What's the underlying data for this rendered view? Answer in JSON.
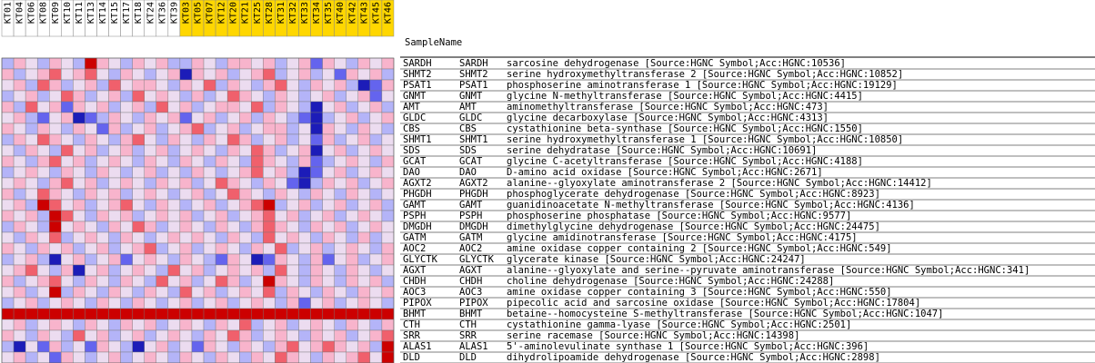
{
  "header": {
    "title": "SampleName"
  },
  "sample_groups": [
    {
      "color": "#ffffff",
      "samples": [
        "KT01",
        "KT04",
        "KT06",
        "KT08",
        "KT09",
        "KT10",
        "KT11",
        "KT13",
        "KT14",
        "KT15",
        "KT17",
        "KT18",
        "KT24",
        "KT36",
        "KT39"
      ]
    },
    {
      "color": "#ffd700",
      "samples": [
        "KT03",
        "KT05",
        "KT07",
        "KT12",
        "KT20",
        "KT21",
        "KT25",
        "KT28",
        "KT31",
        "KT32",
        "KT33",
        "KT34",
        "KT35",
        "KT40",
        "KT42",
        "KT43",
        "KT45",
        "KT46"
      ]
    }
  ],
  "level_colors": {
    "-3": "#1c1cb8",
    "-2": "#6464ee",
    "-1": "#b4b4f8",
    "0": "#ecdcf0",
    "1": "#f8b4cc",
    "2": "#f0606c",
    "3": "#cc0000"
  },
  "rows": [
    {
      "probe": "SARDH",
      "symbol": "SARDH",
      "description": "sarcosine dehydrogenase [Source:HGNC Symbol;Acc:HGNC:10536]",
      "values": [
        -1,
        1,
        0,
        -1,
        1,
        0,
        -1,
        3,
        1,
        0,
        -1,
        1,
        0,
        1,
        -1,
        -1,
        1,
        0,
        -1,
        1,
        1,
        0,
        1,
        -1,
        0,
        1,
        -2,
        1,
        0,
        -1,
        1,
        0,
        1
      ]
    },
    {
      "probe": "SHMT2",
      "symbol": "SHMT2",
      "description": "serine hydroxymethyltransferase 2 [Source:HGNC Symbol;Acc:HGNC:10852]",
      "values": [
        1,
        -1,
        0,
        1,
        2,
        0,
        1,
        2,
        0,
        -1,
        1,
        0,
        -1,
        0,
        1,
        -3,
        1,
        0,
        1,
        -1,
        0,
        1,
        2,
        -1,
        0,
        1,
        -1,
        0,
        -2,
        1,
        0,
        1,
        -1
      ]
    },
    {
      "probe": "PSAT1",
      "symbol": "PSAT1",
      "description": "phosphoserine aminotransferase 1 [Source:HGNC Symbol;Acc:HGNC:19129]",
      "values": [
        0,
        1,
        -1,
        2,
        1,
        -1,
        0,
        1,
        -1,
        2,
        0,
        1,
        1,
        0,
        -1,
        1,
        0,
        2,
        -1,
        1,
        0,
        -1,
        1,
        2,
        0,
        -1,
        1,
        0,
        1,
        -1,
        -3,
        -2,
        1
      ]
    },
    {
      "probe": "GNMT",
      "symbol": "GNMT",
      "description": "glycine N-methyltransferase [Source:HGNC Symbol;Acc:HGNC:4415]",
      "values": [
        -1,
        0,
        1,
        -1,
        0,
        2,
        1,
        -1,
        0,
        1,
        -1,
        2,
        0,
        1,
        0,
        -1,
        1,
        -1,
        0,
        2,
        1,
        0,
        -1,
        1,
        0,
        -1,
        0,
        1,
        -1,
        0,
        1,
        -2,
        0
      ]
    },
    {
      "probe": "AMT",
      "symbol": "AMT",
      "description": "aminomethyltransferase [Source:HGNC Symbol;Acc:HGNC:473]",
      "values": [
        1,
        -1,
        2,
        0,
        1,
        -2,
        1,
        0,
        1,
        -1,
        0,
        1,
        -1,
        2,
        0,
        1,
        -1,
        0,
        1,
        1,
        0,
        2,
        -1,
        1,
        0,
        -1,
        -3,
        0,
        1,
        -1,
        0,
        1,
        -1
      ]
    },
    {
      "probe": "GLDC",
      "symbol": "GLDC",
      "description": "glycine decarboxylase [Source:HGNC Symbol;Acc:HGNC:4313]",
      "values": [
        0,
        1,
        -1,
        -2,
        0,
        1,
        -3,
        -2,
        -1,
        1,
        0,
        -1,
        1,
        0,
        1,
        -2,
        0,
        1,
        -1,
        0,
        1,
        -1,
        1,
        0,
        -1,
        -2,
        -3,
        -1,
        0,
        1,
        -1,
        0,
        1
      ]
    },
    {
      "probe": "CBS",
      "symbol": "CBS",
      "description": "cystathionine beta-synthase [Source:HGNC Symbol;Acc:HGNC:1550]",
      "values": [
        1,
        0,
        -1,
        1,
        0,
        -1,
        1,
        0,
        -2,
        1,
        -1,
        0,
        1,
        -1,
        0,
        1,
        2,
        -1,
        0,
        1,
        -1,
        0,
        1,
        1,
        -1,
        0,
        -3,
        1,
        0,
        -1,
        1,
        0,
        -1
      ]
    },
    {
      "probe": "SHMT1",
      "symbol": "SHMT1",
      "description": "serine hydroxymethyltransferase 1 [Source:HGNC Symbol;Acc:HGNC:10850]",
      "values": [
        -1,
        1,
        0,
        2,
        1,
        0,
        -1,
        1,
        0,
        -1,
        1,
        2,
        0,
        -1,
        1,
        0,
        -1,
        1,
        0,
        2,
        1,
        -1,
        0,
        1,
        -1,
        0,
        -2,
        1,
        -1,
        0,
        1,
        -1,
        0
      ]
    },
    {
      "probe": "SDS",
      "symbol": "SDS",
      "description": "serine dehydratase [Source:HGNC Symbol;Acc:HGNC:10691]",
      "values": [
        0,
        -1,
        1,
        0,
        -1,
        2,
        0,
        1,
        -1,
        0,
        1,
        -1,
        0,
        1,
        -1,
        0,
        1,
        0,
        -1,
        1,
        0,
        2,
        1,
        -1,
        0,
        1,
        -3,
        0,
        1,
        -1,
        0,
        1,
        0
      ]
    },
    {
      "probe": "GCAT",
      "symbol": "GCAT",
      "description": "glycine C-acetyltransferase [Source:HGNC Symbol;Acc:HGNC:4188]",
      "values": [
        1,
        0,
        -1,
        1,
        2,
        0,
        1,
        -1,
        0,
        1,
        0,
        -1,
        1,
        0,
        -1,
        1,
        0,
        -1,
        1,
        0,
        -1,
        2,
        1,
        0,
        -1,
        1,
        -2,
        -1,
        0,
        1,
        0,
        -1,
        1
      ]
    },
    {
      "probe": "DAO",
      "symbol": "DAO",
      "description": "D-amino acid oxidase [Source:HGNC Symbol;Acc:HGNC:2671]",
      "values": [
        -1,
        0,
        1,
        0,
        -1,
        1,
        0,
        -1,
        1,
        0,
        -1,
        0,
        1,
        -1,
        0,
        -1,
        1,
        0,
        -1,
        0,
        1,
        2,
        0,
        1,
        -1,
        -3,
        -2,
        0,
        1,
        -1,
        0,
        1,
        0
      ]
    },
    {
      "probe": "AGXT2",
      "symbol": "AGXT2",
      "description": "alanine--glyoxylate aminotransferase 2 [Source:HGNC Symbol;Acc:HGNC:14412]",
      "values": [
        0,
        1,
        0,
        -1,
        1,
        2,
        0,
        1,
        -1,
        0,
        1,
        0,
        -1,
        1,
        0,
        1,
        -1,
        0,
        2,
        1,
        0,
        -1,
        1,
        0,
        -2,
        -3,
        -1,
        1,
        0,
        1,
        -1,
        0,
        1
      ]
    },
    {
      "probe": "PHGDH",
      "symbol": "PHGDH",
      "description": "phosphoglycerate dehydrogenase [Source:HGNC Symbol;Acc:HGNC:8923]",
      "values": [
        1,
        -1,
        0,
        2,
        1,
        0,
        -1,
        1,
        0,
        1,
        -1,
        0,
        1,
        0,
        -1,
        0,
        1,
        -1,
        0,
        2,
        1,
        0,
        -1,
        1,
        0,
        -1,
        1,
        0,
        -1,
        1,
        0,
        -1,
        0
      ]
    },
    {
      "probe": "GAMT",
      "symbol": "GAMT",
      "description": "guanidinoacetate N-methyltransferase [Source:HGNC Symbol;Acc:HGNC:4136]",
      "values": [
        0,
        1,
        -1,
        3,
        2,
        0,
        1,
        -1,
        0,
        1,
        2,
        0,
        -1,
        1,
        0,
        -1,
        0,
        1,
        -1,
        0,
        1,
        2,
        3,
        -1,
        0,
        1,
        -1,
        0,
        1,
        -1,
        0,
        1,
        -1
      ]
    },
    {
      "probe": "PSPH",
      "symbol": "PSPH",
      "description": "phosphoserine phosphatase [Source:HGNC Symbol;Acc:HGNC:9577]",
      "values": [
        1,
        0,
        1,
        -1,
        3,
        2,
        0,
        -1,
        1,
        0,
        1,
        -1,
        0,
        1,
        0,
        1,
        -1,
        0,
        1,
        -1,
        0,
        1,
        2,
        0,
        1,
        -1,
        0,
        1,
        -1,
        0,
        1,
        0,
        -1
      ]
    },
    {
      "probe": "DMGDH",
      "symbol": "DMGDH",
      "description": "dimethylglycine dehydrogenase [Source:HGNC Symbol;Acc:HGNC:24475]",
      "values": [
        -1,
        1,
        0,
        -1,
        3,
        0,
        1,
        0,
        -1,
        1,
        0,
        2,
        1,
        -1,
        0,
        1,
        0,
        -1,
        1,
        0,
        -1,
        1,
        2,
        1,
        0,
        -1,
        1,
        0,
        1,
        -1,
        0,
        1,
        0
      ]
    },
    {
      "probe": "GATM",
      "symbol": "GATM",
      "description": "glycine amidinotransferase [Source:HGNC Symbol;Acc:HGNC:4175]",
      "values": [
        0,
        -1,
        1,
        0,
        2,
        -1,
        0,
        1,
        0,
        -1,
        1,
        0,
        -1,
        0,
        1,
        0,
        1,
        0,
        -1,
        1,
        0,
        -1,
        2,
        0,
        1,
        0,
        -1,
        1,
        0,
        -1,
        1,
        -1,
        0
      ]
    },
    {
      "probe": "AOC2",
      "symbol": "AOC2",
      "description": "amine oxidase copper containing 2 [Source:HGNC Symbol;Acc:HGNC:549]",
      "values": [
        1,
        0,
        -1,
        1,
        0,
        1,
        -1,
        0,
        1,
        -1,
        0,
        1,
        2,
        -1,
        0,
        1,
        -1,
        0,
        1,
        0,
        -1,
        1,
        0,
        2,
        -1,
        0,
        1,
        -1,
        0,
        1,
        0,
        -1,
        1
      ]
    },
    {
      "probe": "GLYCTK",
      "symbol": "GLYCTK",
      "description": "glycerate kinase [Source:HGNC Symbol;Acc:HGNC:24247]",
      "values": [
        -1,
        0,
        1,
        -1,
        -3,
        0,
        1,
        -1,
        0,
        1,
        -2,
        0,
        1,
        0,
        -1,
        1,
        0,
        -1,
        -2,
        1,
        0,
        -3,
        -2,
        1,
        0,
        -1,
        1,
        -2,
        0,
        1,
        -1,
        0,
        1
      ]
    },
    {
      "probe": "AGXT",
      "symbol": "AGXT",
      "description": "alanine--glyoxylate and serine--pyruvate aminotransferase [Source:HGNC Symbol;Acc:HGNC:341]",
      "values": [
        0,
        1,
        2,
        0,
        -1,
        1,
        -3,
        0,
        1,
        -1,
        0,
        1,
        0,
        -1,
        2,
        0,
        1,
        -1,
        0,
        1,
        0,
        1,
        -1,
        2,
        0,
        -1,
        1,
        0,
        -1,
        1,
        0,
        -1,
        0
      ]
    },
    {
      "probe": "CHDH",
      "symbol": "CHDH",
      "description": "choline dehydrogenase [Source:HGNC Symbol;Acc:HGNC:24288]",
      "values": [
        1,
        -1,
        0,
        1,
        2,
        0,
        -1,
        1,
        0,
        -1,
        1,
        0,
        -1,
        2,
        0,
        1,
        -1,
        0,
        2,
        1,
        -1,
        0,
        3,
        1,
        0,
        -1,
        1,
        0,
        -1,
        1,
        0,
        1,
        -1
      ]
    },
    {
      "probe": "AOC3",
      "symbol": "AOC3",
      "description": "amine oxidase copper containing 3 [Source:HGNC Symbol;Acc:HGNC:550]",
      "values": [
        0,
        1,
        -1,
        0,
        3,
        -1,
        1,
        0,
        -1,
        1,
        0,
        -1,
        1,
        0,
        -1,
        2,
        0,
        1,
        -1,
        0,
        1,
        0,
        2,
        -1,
        1,
        0,
        -1,
        1,
        0,
        -1,
        1,
        0,
        1
      ]
    },
    {
      "probe": "PIPOX",
      "symbol": "PIPOX",
      "description": "pipecolic acid and sarcosine oxidase [Source:HGNC Symbol;Acc:HGNC:17804]",
      "values": [
        -1,
        0,
        1,
        -1,
        0,
        1,
        0,
        -1,
        1,
        0,
        -1,
        1,
        0,
        -1,
        0,
        1,
        -1,
        0,
        1,
        -1,
        0,
        1,
        0,
        -1,
        1,
        -2,
        0,
        1,
        -1,
        0,
        1,
        0,
        -1
      ]
    },
    {
      "probe": "BHMT",
      "symbol": "BHMT",
      "description": "betaine--homocysteine S-methyltransferase [Source:HGNC Symbol;Acc:HGNC:1047]",
      "values": [
        3,
        3,
        3,
        3,
        3,
        3,
        3,
        3,
        3,
        3,
        3,
        3,
        3,
        3,
        3,
        3,
        3,
        3,
        3,
        3,
        3,
        3,
        3,
        3,
        3,
        3,
        3,
        3,
        3,
        3,
        3,
        3,
        3
      ]
    },
    {
      "probe": "CTH",
      "symbol": "CTH",
      "description": "cystathionine gamma-lyase [Source:HGNC Symbol;Acc:HGNC:2501]",
      "values": [
        0,
        1,
        -1,
        0,
        1,
        0,
        -1,
        1,
        0,
        -1,
        1,
        0,
        1,
        -1,
        0,
        1,
        0,
        -1,
        1,
        0,
        2,
        -1,
        0,
        1,
        -1,
        0,
        1,
        0,
        -1,
        1,
        0,
        -1,
        1
      ]
    },
    {
      "probe": "SRR",
      "symbol": "SRR",
      "description": "serine racemase [Source:HGNC Symbol;Acc:HGNC:14398]",
      "values": [
        1,
        0,
        -1,
        1,
        0,
        -1,
        2,
        0,
        1,
        -1,
        0,
        1,
        -1,
        0,
        1,
        0,
        -1,
        1,
        0,
        2,
        1,
        -1,
        0,
        1,
        0,
        -1,
        1,
        0,
        1,
        -1,
        0,
        1,
        2
      ]
    },
    {
      "probe": "ALAS1",
      "symbol": "ALAS1",
      "description": "5'-aminolevulinate synthase 1 [Source:HGNC Symbol;Acc:HGNC:396]",
      "values": [
        -1,
        -3,
        0,
        -2,
        1,
        -1,
        0,
        -2,
        1,
        0,
        -1,
        -3,
        0,
        1,
        -1,
        0,
        -2,
        1,
        0,
        -1,
        1,
        0,
        -1,
        1,
        2,
        0,
        1,
        2,
        1,
        0,
        1,
        -1,
        3
      ]
    },
    {
      "probe": "DLD",
      "symbol": "DLD",
      "description": "dihydrolipoamide dehydrogenase [Source:HGNC Symbol;Acc:HGNC:2898]",
      "values": [
        0,
        1,
        -1,
        0,
        -2,
        1,
        0,
        -1,
        0,
        1,
        -1,
        0,
        1,
        0,
        -1,
        1,
        0,
        -1,
        1,
        0,
        -1,
        1,
        0,
        2,
        1,
        0,
        -1,
        1,
        0,
        1,
        2,
        0,
        3
      ]
    }
  ]
}
